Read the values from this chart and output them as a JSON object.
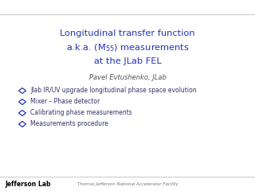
{
  "title_line1": "Longitudinal transfer function",
  "title_line2_pre": "a.k.a. (M",
  "title_line2_sub": "55",
  "title_line2_post": ") measurements",
  "title_line3": "at the JLab FEL",
  "author": "Pavel Evtushenko, JLab",
  "bullets": [
    "Jlab IR/UV upgrade longitudinal phase space evolution",
    "Mixer – Phase detector",
    "Calibrating phase measurements",
    "Measurements procedure"
  ],
  "footer_left": "Jefferson Lab",
  "footer_center": "Thomas Jefferson National Accelerator Facility",
  "title_color": "#2233bb",
  "author_color": "#555555",
  "bullet_color": "#333366",
  "footer_color": "#777777",
  "bg_color": "#ffffff",
  "line_color": "#cccccc",
  "diamond_color": "#2233bb"
}
